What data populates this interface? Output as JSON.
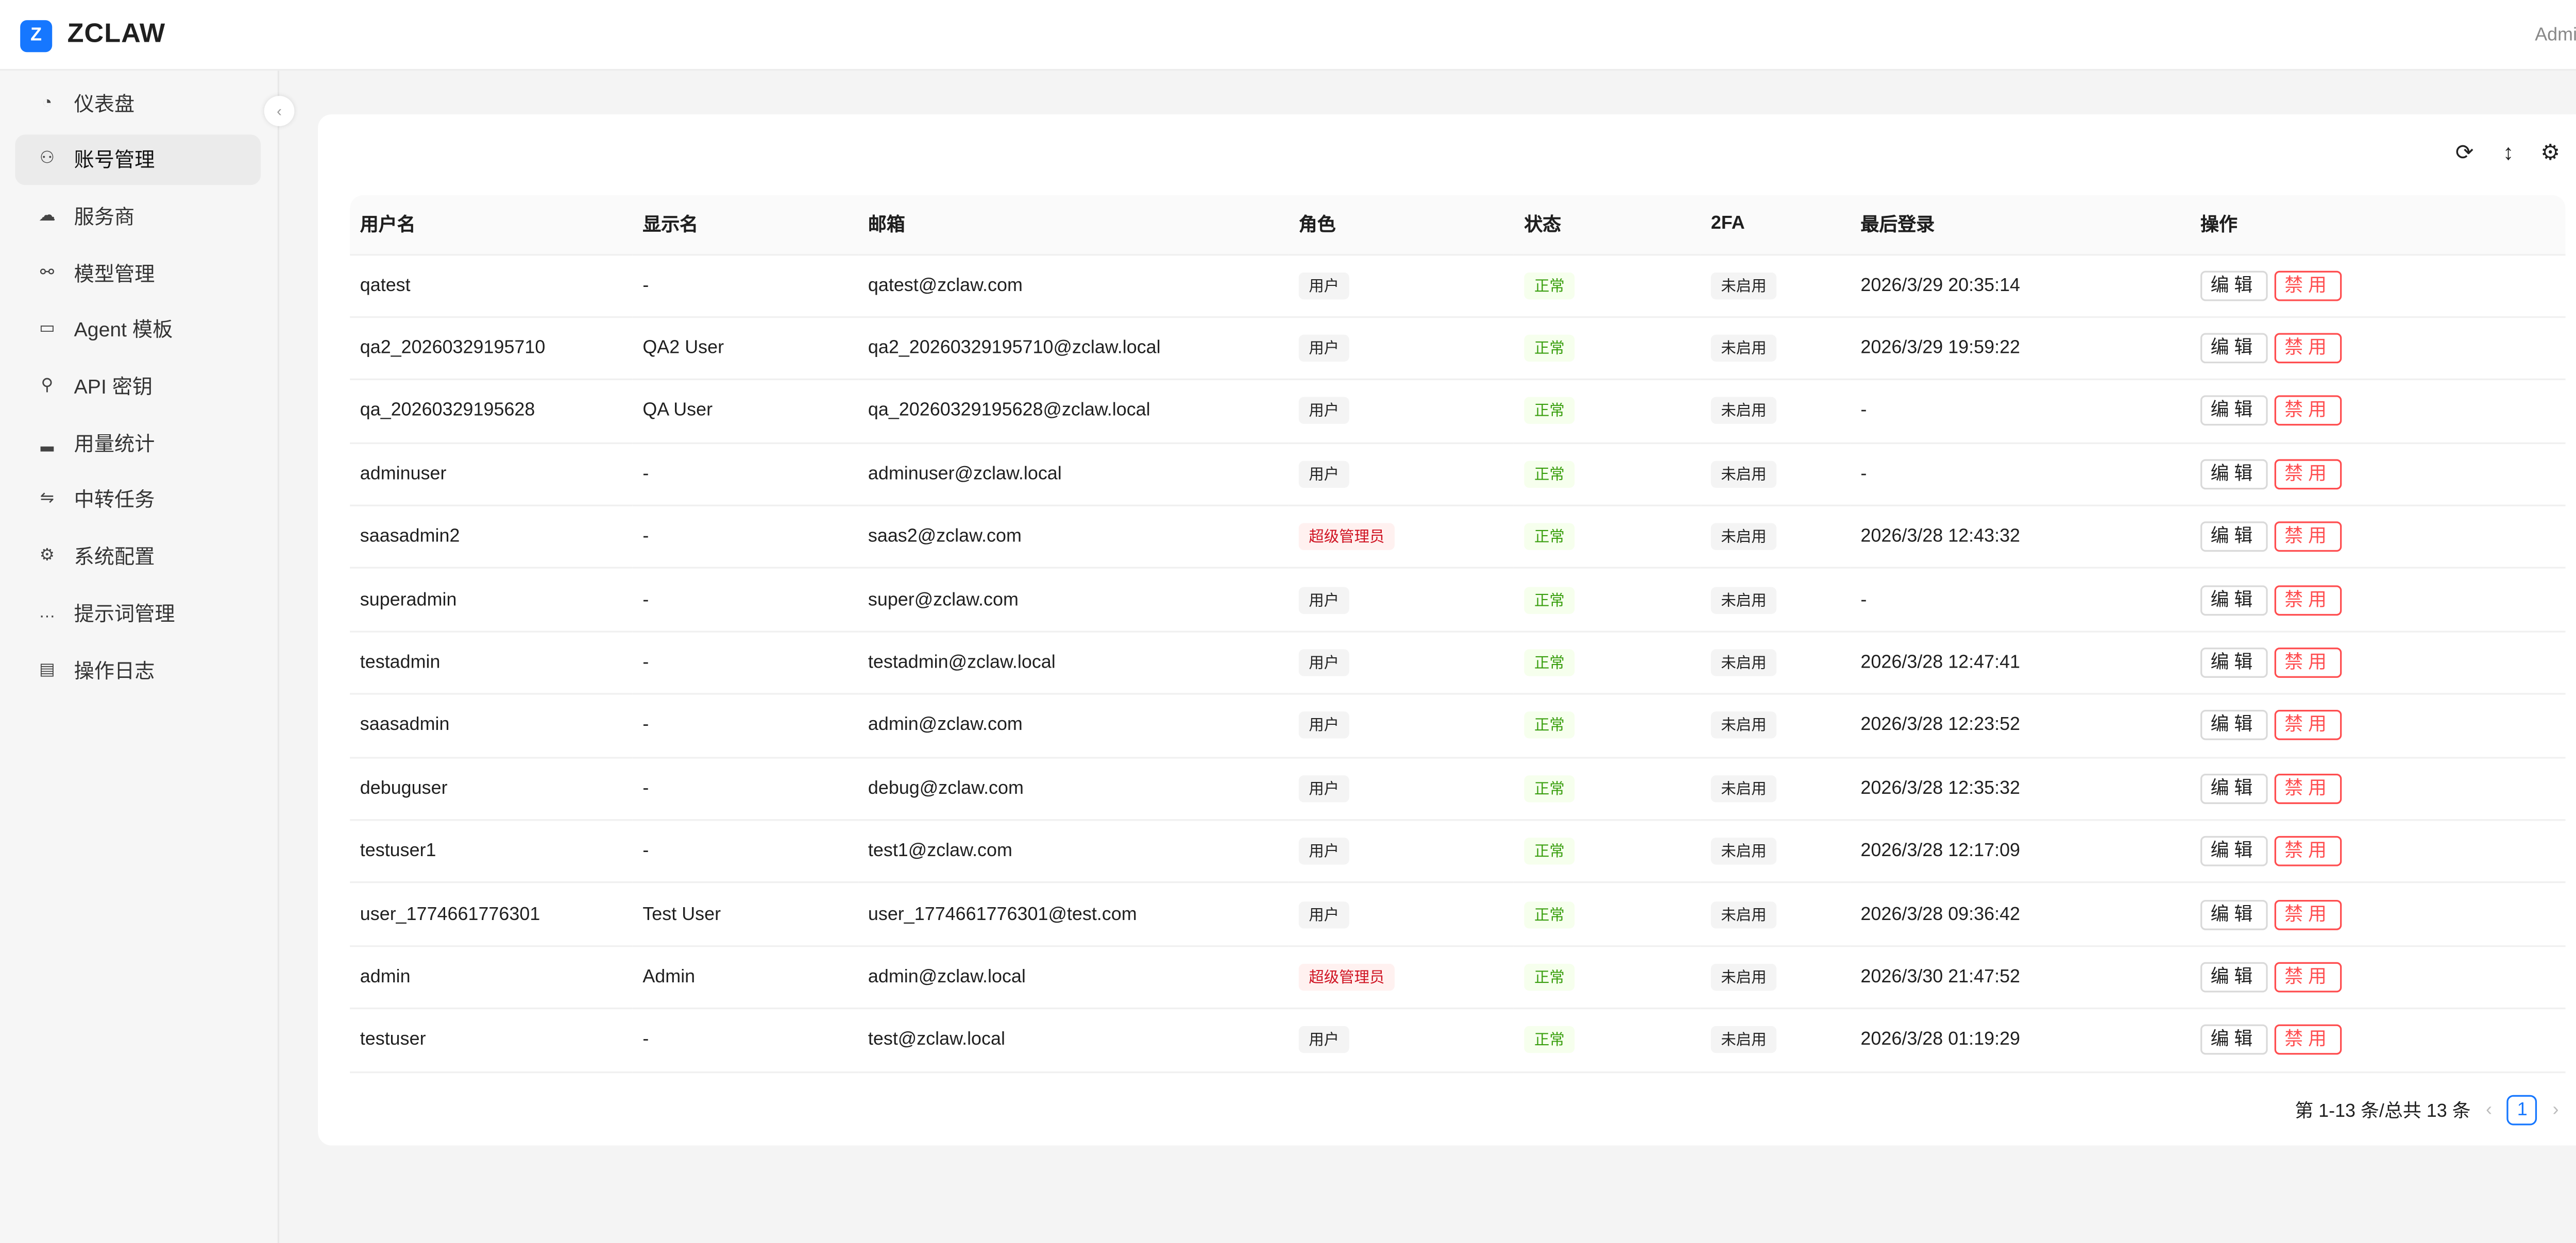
{
  "header": {
    "logo_letter": "Z",
    "brand": "ZCLAW",
    "user": "Admin"
  },
  "sidebar": {
    "items": [
      {
        "label": "仪表盘",
        "icon": "dashboard-icon",
        "glyph": "◔"
      },
      {
        "label": "账号管理",
        "icon": "users-icon",
        "glyph": "⚇",
        "active": true
      },
      {
        "label": "服务商",
        "icon": "cloud-server-icon",
        "glyph": "☁"
      },
      {
        "label": "模型管理",
        "icon": "link-icon",
        "glyph": "⚯"
      },
      {
        "label": "Agent 模板",
        "icon": "template-icon",
        "glyph": "▭"
      },
      {
        "label": "API 密钥",
        "icon": "key-icon",
        "glyph": "⚲"
      },
      {
        "label": "用量统计",
        "icon": "bar-chart-icon",
        "glyph": "▂"
      },
      {
        "label": "中转任务",
        "icon": "swap-icon",
        "glyph": "⇋"
      },
      {
        "label": "系统配置",
        "icon": "gear-icon",
        "glyph": "⚙"
      },
      {
        "label": "提示词管理",
        "icon": "message-icon",
        "glyph": "…"
      },
      {
        "label": "操作日志",
        "icon": "file-icon",
        "glyph": "▤"
      }
    ],
    "collapse_glyph": "‹"
  },
  "toolbar": {
    "reload": "⟳",
    "density": "↕",
    "settings": "⚙"
  },
  "table": {
    "columns": [
      "用户名",
      "显示名",
      "邮箱",
      "角色",
      "状态",
      "2FA",
      "最后登录",
      "操作"
    ],
    "actions": {
      "edit": "编辑",
      "disable": "禁用"
    },
    "rows": [
      {
        "username": "qatest",
        "display": "-",
        "email": "qatest@zclaw.com",
        "role": "用户",
        "status": "正常",
        "twofa": "未启用",
        "last": "2026/3/29 20:35:14"
      },
      {
        "username": "qa2_20260329195710",
        "display": "QA2 User",
        "email": "qa2_20260329195710@zclaw.local",
        "role": "用户",
        "status": "正常",
        "twofa": "未启用",
        "last": "2026/3/29 19:59:22"
      },
      {
        "username": "qa_20260329195628",
        "display": "QA User",
        "email": "qa_20260329195628@zclaw.local",
        "role": "用户",
        "status": "正常",
        "twofa": "未启用",
        "last": "-"
      },
      {
        "username": "adminuser",
        "display": "-",
        "email": "adminuser@zclaw.local",
        "role": "用户",
        "status": "正常",
        "twofa": "未启用",
        "last": "-"
      },
      {
        "username": "saasadmin2",
        "display": "-",
        "email": "saas2@zclaw.com",
        "role": "超级管理员",
        "status": "正常",
        "twofa": "未启用",
        "last": "2026/3/28 12:43:32"
      },
      {
        "username": "superadmin",
        "display": "-",
        "email": "super@zclaw.com",
        "role": "用户",
        "status": "正常",
        "twofa": "未启用",
        "last": "-"
      },
      {
        "username": "testadmin",
        "display": "-",
        "email": "testadmin@zclaw.local",
        "role": "用户",
        "status": "正常",
        "twofa": "未启用",
        "last": "2026/3/28 12:47:41"
      },
      {
        "username": "saasadmin",
        "display": "-",
        "email": "admin@zclaw.com",
        "role": "用户",
        "status": "正常",
        "twofa": "未启用",
        "last": "2026/3/28 12:23:52"
      },
      {
        "username": "debuguser",
        "display": "-",
        "email": "debug@zclaw.com",
        "role": "用户",
        "status": "正常",
        "twofa": "未启用",
        "last": "2026/3/28 12:35:32"
      },
      {
        "username": "testuser1",
        "display": "-",
        "email": "test1@zclaw.com",
        "role": "用户",
        "status": "正常",
        "twofa": "未启用",
        "last": "2026/3/28 12:17:09"
      },
      {
        "username": "user_1774661776301",
        "display": "Test User",
        "email": "user_1774661776301@test.com",
        "role": "用户",
        "status": "正常",
        "twofa": "未启用",
        "last": "2026/3/28 09:36:42"
      },
      {
        "username": "admin",
        "display": "Admin",
        "email": "admin@zclaw.local",
        "role": "超级管理员",
        "status": "正常",
        "twofa": "未启用",
        "last": "2026/3/30 21:47:52"
      },
      {
        "username": "testuser",
        "display": "-",
        "email": "test@zclaw.local",
        "role": "用户",
        "status": "正常",
        "twofa": "未启用",
        "last": "2026/3/28 01:19:29"
      }
    ]
  },
  "pagination": {
    "summary": "第 1-13 条/总共 13 条",
    "current": "1",
    "prev": "‹",
    "next": "›"
  },
  "colors": {
    "primary": "#1677ff",
    "danger": "#ff4d4f",
    "success": "#389e0d",
    "superadmin": "#cf1322"
  }
}
